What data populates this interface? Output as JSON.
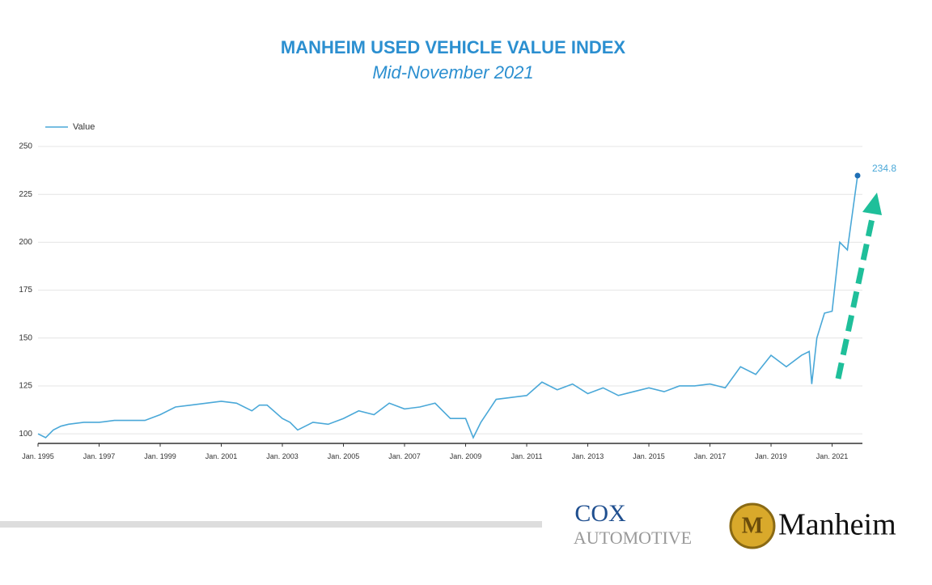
{
  "chart_data": {
    "type": "line",
    "title": "MANHEIM USED VEHICLE VALUE INDEX",
    "subtitle": "Mid-November 2021",
    "x": [
      "1995-01",
      "1995-04",
      "1995-07",
      "1995-10",
      "1996-01",
      "1996-07",
      "1997-01",
      "1997-07",
      "1998-01",
      "1998-07",
      "1999-01",
      "1999-07",
      "2000-01",
      "2000-07",
      "2001-01",
      "2001-07",
      "2002-01",
      "2002-04",
      "2002-07",
      "2003-01",
      "2003-04",
      "2003-07",
      "2004-01",
      "2004-07",
      "2005-01",
      "2005-07",
      "2006-01",
      "2006-07",
      "2007-01",
      "2007-07",
      "2008-01",
      "2008-07",
      "2009-01",
      "2009-04",
      "2009-07",
      "2010-01",
      "2010-07",
      "2011-01",
      "2011-07",
      "2012-01",
      "2012-07",
      "2013-01",
      "2013-07",
      "2014-01",
      "2014-07",
      "2015-01",
      "2015-07",
      "2016-01",
      "2016-07",
      "2017-01",
      "2017-07",
      "2018-01",
      "2018-07",
      "2019-01",
      "2019-07",
      "2020-01",
      "2020-04",
      "2020-05",
      "2020-07",
      "2020-10",
      "2021-01",
      "2021-04",
      "2021-07",
      "2021-11"
    ],
    "series": [
      {
        "name": "Value",
        "color": "#4aa8d8",
        "values": [
          100,
          98,
          102,
          104,
          105,
          106,
          106,
          107,
          107,
          107,
          110,
          114,
          115,
          116,
          117,
          116,
          112,
          115,
          115,
          108,
          106,
          102,
          106,
          105,
          108,
          112,
          110,
          116,
          113,
          114,
          116,
          108,
          108,
          98,
          106,
          118,
          119,
          120,
          127,
          123,
          126,
          121,
          124,
          120,
          122,
          124,
          122,
          125,
          125,
          126,
          124,
          135,
          131,
          141,
          135,
          141,
          143,
          126,
          150,
          163,
          164,
          200,
          196,
          234.8
        ]
      }
    ],
    "xlim": [
      "1995-01",
      "2021-11"
    ],
    "xticks": [
      {
        "value": "1995-01",
        "label": "Jan. 1995"
      },
      {
        "value": "1997-01",
        "label": "Jan. 1997"
      },
      {
        "value": "1999-01",
        "label": "Jan. 1999"
      },
      {
        "value": "2001-01",
        "label": "Jan. 2001"
      },
      {
        "value": "2003-01",
        "label": "Jan. 2003"
      },
      {
        "value": "2005-01",
        "label": "Jan. 2005"
      },
      {
        "value": "2007-01",
        "label": "Jan. 2007"
      },
      {
        "value": "2009-01",
        "label": "Jan. 2009"
      },
      {
        "value": "2011-01",
        "label": "Jan. 2011"
      },
      {
        "value": "2013-01",
        "label": "Jan. 2013"
      },
      {
        "value": "2015-01",
        "label": "Jan. 2015"
      },
      {
        "value": "2017-01",
        "label": "Jan. 2017"
      },
      {
        "value": "2019-01",
        "label": "Jan. 2019"
      },
      {
        "value": "2021-01",
        "label": "Jan. 2021"
      }
    ],
    "ylim": [
      95,
      250
    ],
    "yticks": [
      100,
      125,
      150,
      175,
      200,
      225,
      250
    ],
    "grid": true,
    "legend": "top-left"
  },
  "logos": {
    "cox": "COX",
    "automotive": "AUTOMOTIVE",
    "manheim": "Manheim"
  }
}
